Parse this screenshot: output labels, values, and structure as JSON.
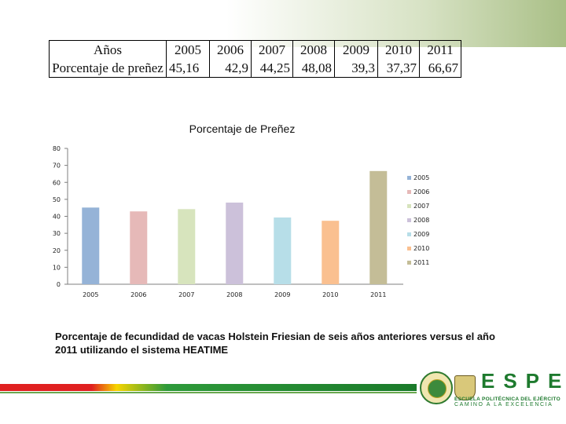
{
  "table": {
    "label_line1": "Años",
    "label_line2": "Porcentaje de preñez",
    "years": [
      "2005",
      "2006",
      "2007",
      "2008",
      "2009",
      "2010",
      "2011"
    ],
    "values": [
      "45,16",
      "42,9",
      "44,25",
      "48,08",
      "39,3",
      "37,37",
      "66,67"
    ]
  },
  "chart_data": {
    "type": "bar",
    "title": "Porcentaje de Preñez",
    "categories": [
      "2005",
      "2006",
      "2007",
      "2008",
      "2009",
      "2010",
      "2011"
    ],
    "values": [
      45.16,
      42.9,
      44.25,
      48.08,
      39.3,
      37.37,
      66.67
    ],
    "ylim": [
      0,
      80
    ],
    "yticks": [
      "0",
      "10",
      "20",
      "30",
      "40",
      "50",
      "60",
      "70",
      "80"
    ],
    "colors": [
      "#95b3d7",
      "#e6b9b8",
      "#d7e4bd",
      "#ccc1da",
      "#b7dee8",
      "#fac090",
      "#c4bd97"
    ],
    "legend": {
      "position": "right",
      "entries": [
        "2005",
        "2006",
        "2007",
        "2008",
        "2009",
        "2010",
        "2011"
      ]
    },
    "grid": false
  },
  "caption": "Porcentaje de fecundidad de vacas Holstein Friesian de seis años anteriores versus el año 2011 utilizando el sistema HEATIME",
  "footer": {
    "brand": "ESPE",
    "subtitle": "ESCUELA POLITÉCNICA DEL EJÉRCITO",
    "motto": "CAMINO A LA EXCELENCIA",
    "brand_color": "#1e7a2e"
  }
}
